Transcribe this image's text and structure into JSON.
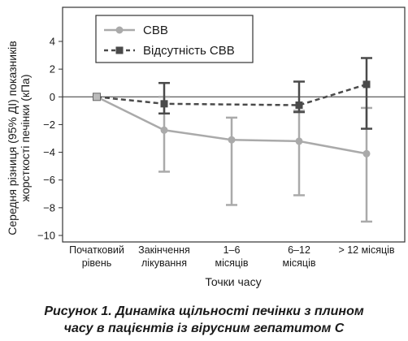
{
  "chart_data": {
    "type": "line",
    "categories": [
      [
        "Початковий",
        "рівень"
      ],
      [
        "Закінчення",
        "лікування"
      ],
      [
        "1–6",
        "місяців"
      ],
      [
        "6–12",
        "місяців"
      ],
      [
        "> 12 місяців"
      ]
    ],
    "series": [
      {
        "name": "CBB",
        "values": [
          0,
          -2.4,
          -3.1,
          -3.2,
          -4.1
        ],
        "err_low": [
          0,
          -5.4,
          -7.8,
          -7.1,
          -9.0
        ],
        "err_high": [
          0,
          0.0,
          -1.5,
          -1.0,
          -0.8
        ],
        "color": "#aaaaaa",
        "style": "solid",
        "marker": "circle"
      },
      {
        "name": "Відсутність CBB",
        "values": [
          0,
          -0.5,
          null,
          -0.6,
          0.9
        ],
        "err_low": [
          0,
          -1.2,
          null,
          -1.1,
          -2.3
        ],
        "err_high": [
          0,
          1.0,
          null,
          1.1,
          2.8
        ],
        "color": "#4a4a4a",
        "style": "dashed",
        "marker": "square"
      }
    ],
    "ylim": [
      -10,
      4
    ],
    "yticks": [
      4,
      2,
      0,
      -2,
      -4,
      -6,
      -8,
      -10
    ],
    "ylabel_lines": [
      "Середня різниця (95% ДІ) показників",
      "жорсткості печінки (кПа)"
    ],
    "xlabel": "Точки часу",
    "legend_position": "top-left",
    "grid": false
  },
  "caption": {
    "line1": "Рисунок 1. Динаміка щільності печінки з плином",
    "line2": "часу в пацієнтів із вірусним гепатитом С"
  }
}
